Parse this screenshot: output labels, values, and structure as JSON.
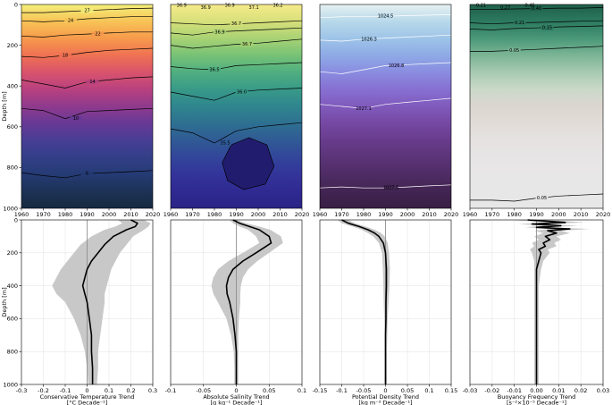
{
  "chart_data": [
    {
      "type": "heatmap",
      "colormap": "thermal",
      "x_ticks": [
        "1960",
        "1970",
        "1980",
        "1990",
        "2000",
        "2010",
        "2020"
      ],
      "y_ticks": [
        "0",
        "200",
        "400",
        "600",
        "800",
        "1000"
      ],
      "ylabel": "Depth [m]",
      "xlim": [
        1960,
        2020
      ],
      "ylim": [
        1000,
        0
      ],
      "contours": [
        {
          "label": "27",
          "values": [
            40,
            40,
            35,
            30,
            25,
            20,
            18
          ]
        },
        {
          "label": "24",
          "values": [
            80,
            85,
            80,
            70,
            65,
            60,
            60
          ]
        },
        {
          "label": "22",
          "values": [
            155,
            160,
            150,
            145,
            140,
            135,
            135
          ]
        },
        {
          "label": "18",
          "values": [
            255,
            260,
            250,
            235,
            225,
            220,
            215
          ]
        },
        {
          "label": "14",
          "values": [
            370,
            390,
            410,
            380,
            370,
            360,
            355
          ]
        },
        {
          "label": "10",
          "values": [
            510,
            520,
            560,
            525,
            520,
            515,
            510
          ]
        },
        {
          "label": "6",
          "values": [
            825,
            840,
            850,
            830,
            825,
            820,
            815
          ]
        }
      ]
    },
    {
      "type": "heatmap",
      "colormap": "haline",
      "x_ticks": [
        "1960",
        "1970",
        "1980",
        "1990",
        "2000",
        "2010",
        "2020"
      ],
      "y_ticks": [],
      "xlim": [
        1960,
        2020
      ],
      "ylim": [
        1000,
        0
      ],
      "contours": [
        {
          "label": "36.7",
          "values": [
            90,
            95,
            100,
            95,
            90,
            85,
            80
          ]
        },
        {
          "label": "36.9",
          "values": [
            140,
            150,
            135,
            130,
            125,
            120,
            115
          ]
        },
        {
          "label": "36.7",
          "values": [
            200,
            215,
            205,
            195,
            190,
            180,
            170
          ]
        },
        {
          "label": "36.5",
          "values": [
            305,
            315,
            320,
            300,
            295,
            290,
            285
          ]
        },
        {
          "label": "36.0",
          "values": [
            430,
            450,
            470,
            430,
            420,
            415,
            410
          ]
        },
        {
          "label": "35.5",
          "values": [
            610,
            630,
            680,
            620,
            600,
            590,
            580
          ]
        }
      ],
      "annotations": [
        "36.9",
        "36.9",
        "36.9",
        "37.1",
        "36.2"
      ]
    },
    {
      "type": "heatmap",
      "colormap": "dense",
      "x_ticks": [
        "1960",
        "1970",
        "1980",
        "1990",
        "2000",
        "2010",
        "2020"
      ],
      "y_ticks": [],
      "xlim": [
        1960,
        2020
      ],
      "ylim": [
        1000,
        0
      ],
      "contours": [
        {
          "label": "1024.5",
          "values": [
            65,
            60,
            60,
            58,
            55,
            52,
            50
          ]
        },
        {
          "label": "1026.3",
          "values": [
            175,
            180,
            170,
            165,
            160,
            155,
            150
          ]
        },
        {
          "label": "1026.8",
          "values": [
            330,
            340,
            320,
            300,
            295,
            290,
            285
          ]
        },
        {
          "label": "1027.1",
          "values": [
            490,
            500,
            510,
            490,
            480,
            470,
            460
          ]
        },
        {
          "label": "1027.5",
          "values": [
            900,
            895,
            900,
            900,
            895,
            890,
            885
          ]
        }
      ]
    },
    {
      "type": "heatmap",
      "colormap": "tempo",
      "x_ticks": [
        "1960",
        "1970",
        "1980",
        "1990",
        "2000",
        "2010",
        "2020"
      ],
      "y_ticks": [],
      "xlim": [
        1960,
        2020
      ],
      "ylim": [
        1000,
        0
      ],
      "contours": [
        {
          "label": "0.40",
          "values": [
            25,
            25,
            22,
            20,
            18,
            18,
            15
          ]
        },
        {
          "label": "0.21",
          "values": [
            90,
            95,
            90,
            88,
            85,
            82,
            80
          ]
        },
        {
          "label": "0.15",
          "values": [
            120,
            125,
            118,
            115,
            110,
            108,
            105
          ]
        },
        {
          "label": "0.05",
          "values": [
            230,
            230,
            225,
            220,
            215,
            210,
            205
          ]
        },
        {
          "label": "0.05",
          "values": [
            960,
            960,
            965,
            950,
            940,
            935,
            930
          ]
        }
      ],
      "annotations": [
        "0.21",
        "0.27",
        "0.46"
      ]
    },
    {
      "type": "line",
      "xlabel": "Conservative Temperature Trend",
      "xunit": "[°C Decade⁻¹]",
      "ylabel": "Depth [m]",
      "xlim": [
        -0.3,
        0.3
      ],
      "ylim": [
        1000,
        0
      ],
      "x_ticks": [
        "-0.3",
        "-0.2",
        "-0.1",
        "0",
        "0.1",
        "0.2",
        "0.3"
      ],
      "y_ticks": [
        "0",
        "200",
        "400",
        "600",
        "800",
        "1000"
      ],
      "depth": [
        0,
        20,
        40,
        60,
        100,
        150,
        200,
        250,
        300,
        350,
        400,
        450,
        500,
        600,
        700,
        800,
        900,
        1000
      ],
      "trend": [
        0.2,
        0.23,
        0.22,
        0.18,
        0.12,
        0.08,
        0.05,
        0.02,
        0.0,
        -0.01,
        -0.02,
        -0.01,
        0.0,
        0.01,
        0.02,
        0.02,
        0.025,
        0.025
      ],
      "lower": [
        0.14,
        0.16,
        0.13,
        0.08,
        0.02,
        -0.03,
        -0.06,
        -0.09,
        -0.12,
        -0.14,
        -0.16,
        -0.14,
        -0.1,
        -0.06,
        -0.03,
        -0.01,
        0.0,
        0.005
      ],
      "upper": [
        0.26,
        0.29,
        0.28,
        0.26,
        0.21,
        0.18,
        0.15,
        0.13,
        0.11,
        0.1,
        0.09,
        0.08,
        0.08,
        0.07,
        0.06,
        0.05,
        0.05,
        0.045
      ]
    },
    {
      "type": "line",
      "xlabel": "Absolute Salinity Trend",
      "xunit": "[g kg⁻¹ Decade⁻¹]",
      "xlim": [
        -0.1,
        0.1
      ],
      "ylim": [
        1000,
        0
      ],
      "x_ticks": [
        "-0.1",
        "-0.05",
        "0",
        "0.05",
        "0.1"
      ],
      "y_ticks": [],
      "depth": [
        0,
        20,
        40,
        60,
        100,
        140,
        200,
        250,
        300,
        350,
        400,
        450,
        500,
        600,
        700,
        800,
        900,
        1000
      ],
      "trend": [
        -0.005,
        0.005,
        0.02,
        0.035,
        0.05,
        0.053,
        0.03,
        0.01,
        -0.005,
        -0.012,
        -0.015,
        -0.014,
        -0.01,
        -0.005,
        -0.002,
        0.0,
        0.0,
        0.0
      ],
      "lower": [
        -0.01,
        -0.005,
        0.005,
        0.018,
        0.03,
        0.035,
        0.01,
        -0.012,
        -0.028,
        -0.035,
        -0.038,
        -0.035,
        -0.028,
        -0.015,
        -0.008,
        -0.004,
        -0.003,
        -0.003
      ],
      "upper": [
        0.0,
        0.015,
        0.035,
        0.052,
        0.068,
        0.071,
        0.05,
        0.032,
        0.018,
        0.01,
        0.007,
        0.006,
        0.006,
        0.004,
        0.003,
        0.003,
        0.003,
        0.003
      ]
    },
    {
      "type": "line",
      "xlabel": "Potential Density Trend",
      "xunit": "[kg m⁻³ Decade⁻¹]",
      "xlim": [
        -0.15,
        0.15
      ],
      "ylim": [
        1000,
        0
      ],
      "x_ticks": [
        "-0.15",
        "-0.1",
        "-0.05",
        "0",
        "0.05",
        "0.1",
        "0.15"
      ],
      "y_ticks": [],
      "depth": [
        0,
        20,
        40,
        60,
        80,
        100,
        140,
        200,
        300,
        400,
        500,
        600,
        700,
        800,
        900,
        1000
      ],
      "trend": [
        -0.1,
        -0.085,
        -0.06,
        -0.04,
        -0.025,
        -0.015,
        -0.005,
        0.0,
        0.002,
        0.002,
        0.001,
        0.001,
        0.0,
        0.0,
        0.0,
        0.0
      ],
      "lower": [
        -0.11,
        -0.1,
        -0.075,
        -0.055,
        -0.04,
        -0.028,
        -0.015,
        -0.008,
        -0.006,
        -0.005,
        -0.004,
        -0.003,
        -0.002,
        -0.002,
        -0.002,
        -0.002
      ],
      "upper": [
        -0.085,
        -0.07,
        -0.045,
        -0.025,
        -0.01,
        -0.002,
        0.005,
        0.008,
        0.01,
        0.009,
        0.007,
        0.005,
        0.004,
        0.003,
        0.003,
        0.003
      ]
    },
    {
      "type": "line",
      "xlabel": "Buoyancy Frequency Trend",
      "xunit": "[s⁻²×10⁻⁵ Decade⁻¹]",
      "xlim": [
        -0.03,
        0.03
      ],
      "ylim": [
        1000,
        0
      ],
      "x_ticks": [
        "-0.03",
        "-0.02",
        "-0.01",
        "0.00",
        "0.01",
        "0.02",
        "0.03"
      ],
      "y_ticks": [],
      "depth": [
        0,
        15,
        25,
        35,
        45,
        55,
        65,
        80,
        100,
        120,
        140,
        160,
        180,
        200,
        250,
        300,
        400,
        500,
        600,
        700,
        800,
        900,
        1000
      ],
      "trend": [
        -0.004,
        0.013,
        -0.002,
        0.011,
        0.0,
        0.015,
        0.005,
        0.009,
        0.004,
        0.006,
        0.003,
        0.004,
        0.001,
        0.002,
        0.001,
        0.0,
        0.0,
        0.0,
        0.0,
        0.0,
        0.0,
        0.0,
        0.0
      ],
      "lower": [
        -0.012,
        0.004,
        -0.008,
        0.003,
        -0.005,
        0.006,
        -0.001,
        0.003,
        -0.001,
        0.001,
        -0.002,
        -0.001,
        -0.003,
        -0.002,
        -0.001,
        -0.001,
        -0.001,
        -0.001,
        -0.001,
        -0.001,
        -0.001,
        -0.001,
        -0.001
      ],
      "upper": [
        0.004,
        0.022,
        0.004,
        0.019,
        0.005,
        0.024,
        0.011,
        0.015,
        0.009,
        0.011,
        0.008,
        0.009,
        0.005,
        0.006,
        0.003,
        0.002,
        0.001,
        0.001,
        0.001,
        0.001,
        0.001,
        0.001,
        0.001
      ]
    }
  ],
  "colors": {
    "trend_line": "#000000",
    "uncertainty_band": "#c8c8c8",
    "zero_line": "#888888",
    "grid": "#e0e0e0"
  }
}
